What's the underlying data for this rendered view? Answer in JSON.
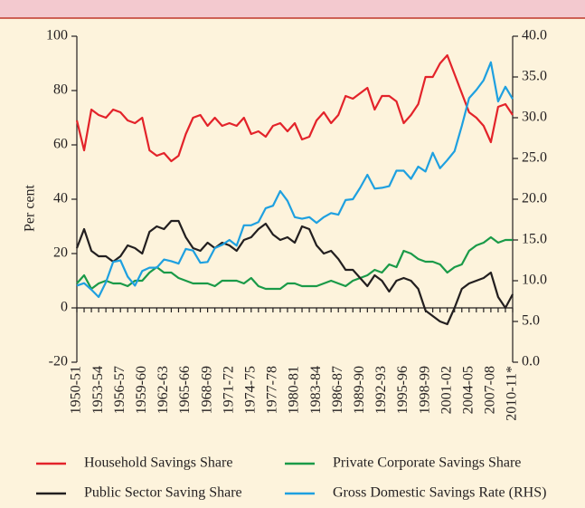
{
  "chart_data": {
    "type": "line",
    "y_label": "Per cent",
    "categories": [
      "1950-51",
      null,
      null,
      "1953-54",
      null,
      null,
      "1956-57",
      null,
      null,
      "1959-60",
      null,
      null,
      "1962-63",
      null,
      null,
      "1965-66",
      null,
      null,
      "1968-69",
      null,
      null,
      "1971-72",
      null,
      null,
      "1974-75",
      null,
      null,
      "1977-78",
      null,
      null,
      "1980-81",
      null,
      null,
      "1983-84",
      null,
      null,
      "1986-87",
      null,
      null,
      "1989-90",
      null,
      null,
      "1992-93",
      null,
      null,
      "1995-96",
      null,
      null,
      "1998-99",
      null,
      null,
      "2001-02",
      null,
      null,
      "2004-05",
      null,
      null,
      "2007-08",
      null,
      null,
      "2010-11*"
    ],
    "ylim": [
      -20,
      100
    ],
    "yticks": [
      -20,
      0,
      20,
      40,
      60,
      80,
      100
    ],
    "y2lim": [
      0,
      40
    ],
    "y2ticks": [
      {
        "value": 0,
        "label": "0.0"
      },
      {
        "value": 5,
        "label": "5.0"
      },
      {
        "value": 10,
        "label": "10.0"
      },
      {
        "value": 15,
        "label": "15.0"
      },
      {
        "value": 20,
        "label": "20.0"
      },
      {
        "value": 25,
        "label": "25.0"
      },
      {
        "value": 30,
        "label": "30.0"
      },
      {
        "value": 35,
        "label": "35.0"
      },
      {
        "value": 40,
        "label": "40.0"
      }
    ],
    "series": [
      {
        "name": "Household Savings Share",
        "color": "#e3232a",
        "values": [
          69,
          58,
          73,
          71,
          70,
          73,
          72,
          69,
          68,
          70,
          58,
          56,
          57,
          54,
          56,
          64,
          70,
          71,
          67,
          70,
          67,
          68,
          67,
          70,
          64,
          65,
          63,
          67,
          68,
          65,
          68,
          62,
          63,
          69,
          72,
          68,
          71,
          78,
          77,
          79,
          81,
          73,
          78,
          78,
          76,
          68,
          71,
          75,
          85,
          85,
          90,
          93,
          86,
          79,
          72,
          70,
          67,
          61,
          74,
          75,
          71
        ]
      },
      {
        "name": "Private Corporate  Savings Share",
        "color": "#1a9a48",
        "values": [
          9,
          12,
          7,
          9,
          10,
          9,
          9,
          8,
          10,
          10,
          13,
          15,
          13,
          13,
          11,
          10,
          9,
          9,
          9,
          8,
          10,
          10,
          10,
          9,
          11,
          8,
          7,
          7,
          7,
          9,
          9,
          8,
          8,
          8,
          9,
          10,
          9,
          8,
          10,
          11,
          12,
          14,
          13,
          16,
          15,
          21,
          20,
          18,
          17,
          17,
          16,
          13,
          15,
          16,
          21,
          23,
          24,
          26,
          24,
          25,
          25
        ]
      },
      {
        "name": "Public Sector Saving Share",
        "color": "#231f20",
        "values": [
          22,
          29,
          21,
          19,
          19,
          17,
          19,
          23,
          22,
          20,
          28,
          30,
          29,
          32,
          32,
          26,
          22,
          21,
          24,
          22,
          24,
          23,
          21,
          25,
          26,
          29,
          31,
          27,
          25,
          26,
          24,
          30,
          29,
          23,
          20,
          21,
          18,
          14,
          14,
          11,
          8,
          12,
          10,
          6,
          10,
          11,
          10,
          7,
          -1,
          -3,
          -5,
          -6,
          0,
          7,
          9,
          10,
          11,
          13,
          4,
          0,
          5
        ]
      },
      {
        "name": "Gross Domestic Savings Rate (RHS)",
        "color": "#1ea0e0",
        "axis": "y2",
        "values": [
          9.4,
          9.7,
          8.9,
          8.0,
          9.8,
          12.3,
          12.5,
          10.5,
          9.4,
          11.2,
          11.6,
          11.6,
          12.6,
          12.4,
          12.1,
          13.9,
          13.7,
          12.2,
          12.3,
          14.0,
          14.4,
          15.0,
          14.3,
          16.8,
          16.8,
          17.2,
          18.9,
          19.2,
          21.0,
          19.8,
          17.8,
          17.6,
          17.8,
          17.1,
          17.8,
          18.3,
          18.1,
          19.9,
          20.0,
          21.4,
          23.0,
          21.3,
          21.4,
          21.6,
          23.5,
          23.5,
          22.5,
          24.0,
          23.4,
          25.7,
          23.8,
          24.8,
          25.9,
          29.0,
          32.4,
          33.4,
          34.6,
          36.8,
          32.0,
          33.8,
          32.3
        ]
      }
    ]
  }
}
